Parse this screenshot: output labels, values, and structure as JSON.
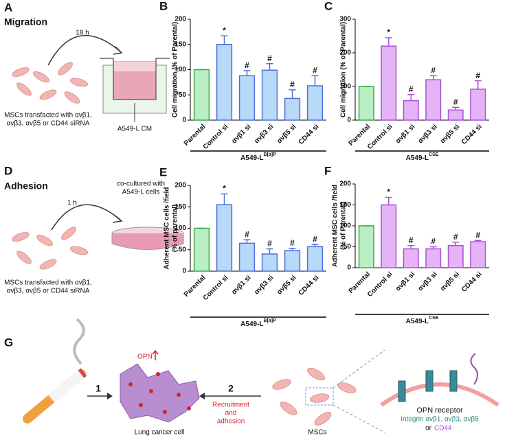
{
  "figure": {
    "panel_a": {
      "letter": "A",
      "title": "Migration",
      "time": "18 h",
      "cells": "MSCs transfacted with αvβ1,",
      "cells_2": "αvβ3, αvβ5 or CD44 siRNA",
      "medium": "A549-L CM"
    },
    "panel_d": {
      "letter": "D",
      "title": "Adhesion",
      "time": "1 h",
      "coculture": "co-cultured with",
      "coculture_2": "A549-L cells",
      "cells": "MSCs transfacted with αvβ1,",
      "cells_2": "αvβ3, αvβ5 or CD44 siRNA"
    },
    "panel_g": {
      "letter": "G",
      "opn": "OPN",
      "step1": "1",
      "step2": "2",
      "recruit": "Recruitment",
      "recruit_2": "and",
      "recruit_3": "adhesion",
      "cancer": "Lung cancer cell",
      "mscs": "MSCs",
      "receptor": "OPN receptor",
      "integrin": "Integrin αvβ1, αvβ3, αvβ5",
      "or": "or",
      "cd44": "CD44"
    }
  },
  "chart_data": [
    {
      "type": "bar",
      "letter": "B",
      "ylabel": "Cell migration (% of Parental)",
      "xlabel": "A549-L",
      "xlabel_sup": "B[a]P",
      "categories": [
        "Parental",
        "Control si",
        "αvβ1 si",
        "αvβ3 si",
        "αvβ5 si",
        "CD44 si"
      ],
      "values": [
        100,
        150,
        88,
        99,
        43,
        68
      ],
      "errors": [
        0,
        17,
        10,
        13,
        17,
        20
      ],
      "annotations": [
        null,
        "*",
        "#",
        "#",
        "#",
        "#"
      ],
      "colors": [
        "#b9efc2",
        "#b8d9f7",
        "#b8d9f7",
        "#b8d9f7",
        "#b8d9f7",
        "#b8d9f7"
      ],
      "edge_colors": [
        "#3aa84a",
        "#4f6fd8",
        "#4f6fd8",
        "#4f6fd8",
        "#4f6fd8",
        "#4f6fd8"
      ],
      "ylim": [
        0,
        200
      ],
      "yticks": [
        0,
        50,
        100,
        150,
        200
      ]
    },
    {
      "type": "bar",
      "letter": "C",
      "ylabel": "Cell migration (% of Parental)",
      "xlabel": "A549-L",
      "xlabel_sup": "CSE",
      "categories": [
        "Parental",
        "Control si",
        "αvβ1 si",
        "αvβ3 si",
        "αvβ5 si",
        "CD44 si"
      ],
      "values": [
        100,
        220,
        58,
        120,
        30,
        92
      ],
      "errors": [
        0,
        25,
        18,
        12,
        8,
        25
      ],
      "annotations": [
        null,
        "*",
        "#",
        "#",
        "#",
        "#"
      ],
      "colors": [
        "#b9efc2",
        "#e6b4f6",
        "#e6b4f6",
        "#e6b4f6",
        "#e6b4f6",
        "#e6b4f6"
      ],
      "edge_colors": [
        "#3aa84a",
        "#a94fd6",
        "#a94fd6",
        "#a94fd6",
        "#a94fd6",
        "#a94fd6"
      ],
      "ylim": [
        0,
        300
      ],
      "yticks": [
        0,
        100,
        200,
        300
      ]
    },
    {
      "type": "bar",
      "letter": "E",
      "ylabel": "Adherent MSC cells /field",
      "ylabel_2": "(% of parental)",
      "xlabel": "A549-L",
      "xlabel_sup": "B[a]P",
      "categories": [
        "Parental",
        "Control si",
        "αvβ1 si",
        "αvβ3 si",
        "αvβ5 si",
        "CD44 si"
      ],
      "values": [
        100,
        155,
        65,
        40,
        48,
        57
      ],
      "errors": [
        0,
        25,
        8,
        12,
        5,
        5
      ],
      "annotations": [
        null,
        "*",
        "#",
        "#",
        "#",
        "#"
      ],
      "colors": [
        "#b9efc2",
        "#b8d9f7",
        "#b8d9f7",
        "#b8d9f7",
        "#b8d9f7",
        "#b8d9f7"
      ],
      "edge_colors": [
        "#3aa84a",
        "#4f6fd8",
        "#4f6fd8",
        "#4f6fd8",
        "#4f6fd8",
        "#4f6fd8"
      ],
      "ylim": [
        0,
        200
      ],
      "yticks": [
        0,
        50,
        100,
        150,
        200
      ]
    },
    {
      "type": "bar",
      "letter": "F",
      "ylabel": "Adherent MSC cells /field",
      "ylabel_2": "(% of Parental)",
      "xlabel": "A549-L",
      "xlabel_sup": "CSE",
      "categories": [
        "Parental",
        "Control si",
        "αvβ1 si",
        "αvβ3 si",
        "αvβ5 si",
        "CD44 si"
      ],
      "values": [
        100,
        150,
        45,
        45,
        53,
        62
      ],
      "errors": [
        0,
        18,
        8,
        5,
        8,
        3
      ],
      "annotations": [
        null,
        "*",
        "#",
        "#",
        "#",
        "#"
      ],
      "colors": [
        "#b9efc2",
        "#e6b4f6",
        "#e6b4f6",
        "#e6b4f6",
        "#e6b4f6",
        "#e6b4f6"
      ],
      "edge_colors": [
        "#3aa84a",
        "#a94fd6",
        "#a94fd6",
        "#a94fd6",
        "#a94fd6",
        "#a94fd6"
      ],
      "ylim": [
        0,
        200
      ],
      "yticks": [
        0,
        50,
        100,
        150,
        200
      ]
    }
  ]
}
